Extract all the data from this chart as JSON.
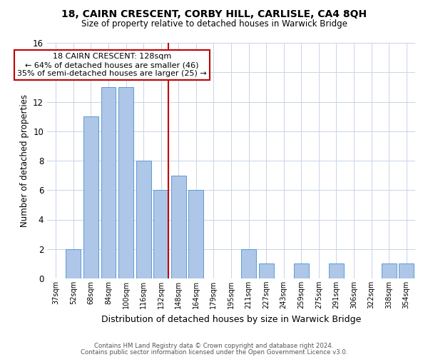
{
  "title": "18, CAIRN CRESCENT, CORBY HILL, CARLISLE, CA4 8QH",
  "subtitle": "Size of property relative to detached houses in Warwick Bridge",
  "xlabel": "Distribution of detached houses by size in Warwick Bridge",
  "ylabel": "Number of detached properties",
  "categories": [
    "37sqm",
    "52sqm",
    "68sqm",
    "84sqm",
    "100sqm",
    "116sqm",
    "132sqm",
    "148sqm",
    "164sqm",
    "179sqm",
    "195sqm",
    "211sqm",
    "227sqm",
    "243sqm",
    "259sqm",
    "275sqm",
    "291sqm",
    "306sqm",
    "322sqm",
    "338sqm",
    "354sqm"
  ],
  "values": [
    0,
    2,
    11,
    13,
    13,
    8,
    6,
    7,
    6,
    0,
    0,
    2,
    1,
    0,
    1,
    0,
    1,
    0,
    0,
    1,
    1
  ],
  "bar_color": "#aec6e8",
  "bar_edgecolor": "#5b9bd5",
  "highlight_index": 6,
  "highlight_color": "#c00000",
  "annotation_text": "18 CAIRN CRESCENT: 128sqm\n← 64% of detached houses are smaller (46)\n35% of semi-detached houses are larger (25) →",
  "annotation_box_color": "#ffffff",
  "annotation_box_edgecolor": "#c00000",
  "ylim": [
    0,
    16
  ],
  "yticks": [
    0,
    2,
    4,
    6,
    8,
    10,
    12,
    14,
    16
  ],
  "footer_line1": "Contains HM Land Registry data © Crown copyright and database right 2024.",
  "footer_line2": "Contains public sector information licensed under the Open Government Licence v3.0.",
  "background_color": "#ffffff",
  "grid_color": "#c8d4e8"
}
